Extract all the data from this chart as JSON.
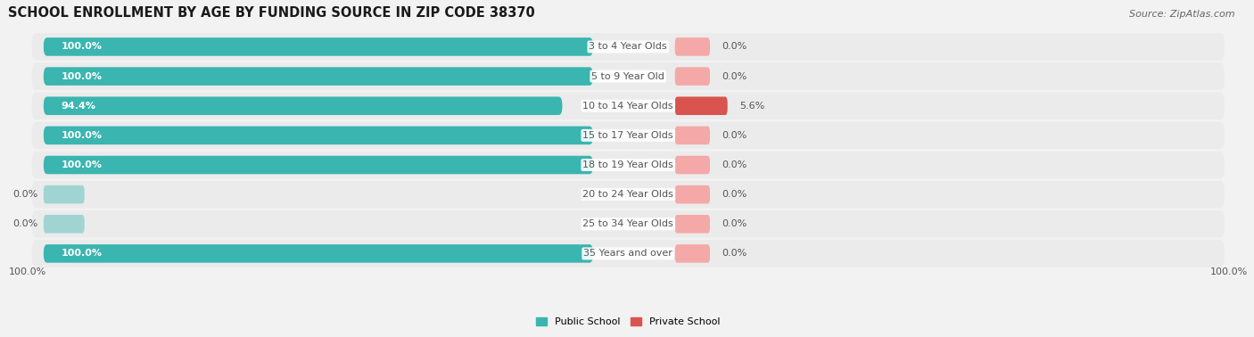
{
  "title": "SCHOOL ENROLLMENT BY AGE BY FUNDING SOURCE IN ZIP CODE 38370",
  "source": "Source: ZipAtlas.com",
  "categories": [
    "3 to 4 Year Olds",
    "5 to 9 Year Old",
    "10 to 14 Year Olds",
    "15 to 17 Year Olds",
    "18 to 19 Year Olds",
    "20 to 24 Year Olds",
    "25 to 34 Year Olds",
    "35 Years and over"
  ],
  "public_values": [
    100.0,
    100.0,
    94.4,
    100.0,
    100.0,
    0.0,
    0.0,
    100.0
  ],
  "private_values": [
    0.0,
    0.0,
    5.6,
    0.0,
    0.0,
    0.0,
    0.0,
    0.0
  ],
  "public_color": "#3ab5b0",
  "public_color_light": "#9fd4d2",
  "private_color_strong": "#d9534f",
  "private_color_light": "#f4a9a8",
  "row_bg_even": "#ececec",
  "row_bg_odd": "#e5e5e5",
  "label_color_white": "#ffffff",
  "label_color_dark": "#555555",
  "title_fontsize": 10.5,
  "label_fontsize": 8,
  "category_fontsize": 8,
  "source_fontsize": 8
}
